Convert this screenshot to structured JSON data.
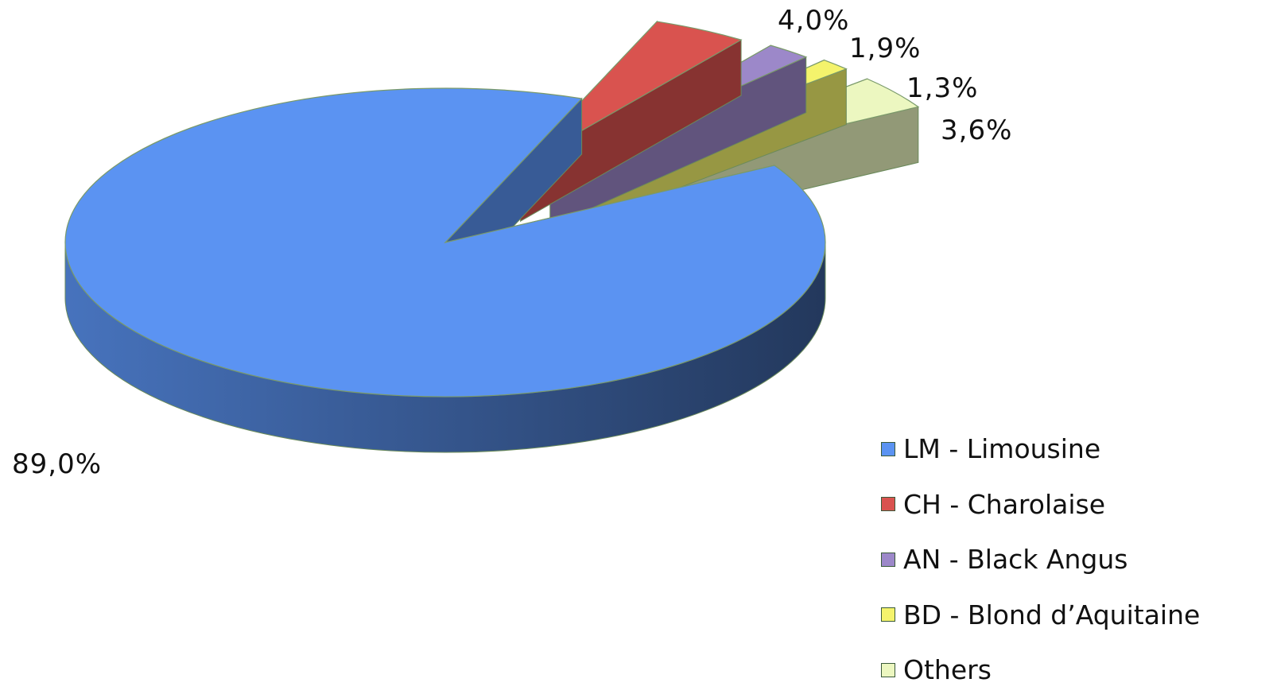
{
  "chart_data": {
    "type": "pie",
    "categories": [
      "LM - Limousine",
      "CH - Charolaise",
      "AN - Black Angus",
      "BD - Blond d’Aquitaine",
      "Others"
    ],
    "values": [
      89.0,
      4.0,
      1.9,
      1.3,
      3.6
    ],
    "labels": [
      "89,0%",
      "4,0%",
      "1,9%",
      "1,3%",
      "3,6%"
    ],
    "colors": [
      "#5b93f2",
      "#d9534f",
      "#9c88c9",
      "#f4f36c",
      "#ecf7c0"
    ],
    "legend_position": "bottom-right",
    "style": "3d-exploded"
  }
}
